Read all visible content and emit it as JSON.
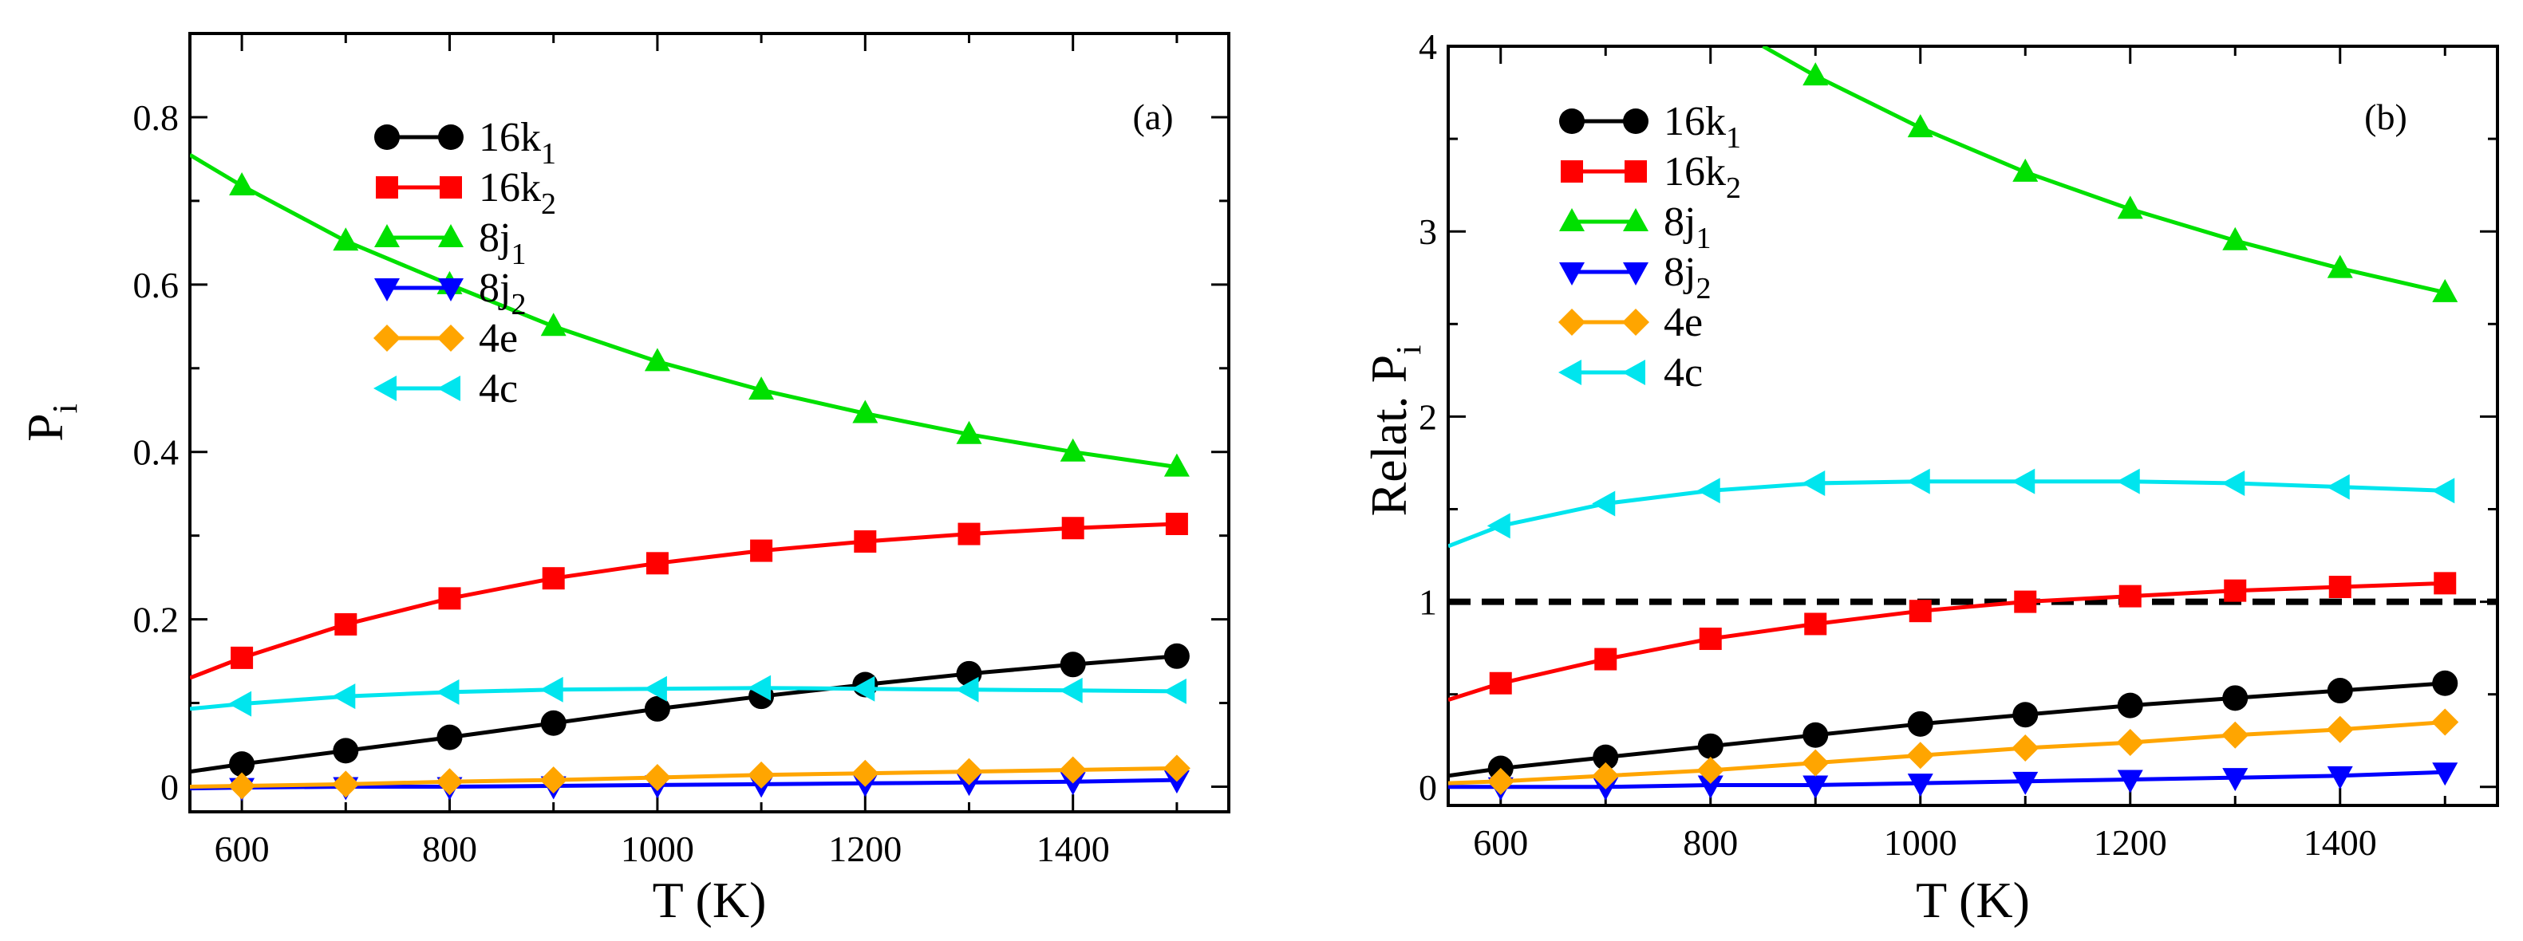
{
  "chart_data": [
    {
      "type": "line",
      "panel_label": "(a)",
      "xlabel": "T (K)",
      "ylabel": {
        "main": "P",
        "sub": "i"
      },
      "xlim": [
        550,
        1550
      ],
      "ylim": [
        -0.03,
        0.9
      ],
      "xticks": [
        600,
        800,
        1000,
        1200,
        1400
      ],
      "yticks": [
        0,
        0.2,
        0.4,
        0.6,
        0.8
      ],
      "xtick_labels": [
        "600",
        "800",
        "1000",
        "1200",
        "1400"
      ],
      "ytick_labels": [
        "0",
        "0.2",
        "0.4",
        "0.6",
        "0.8"
      ],
      "legend_position": "top-left",
      "series": [
        {
          "name": "16k",
          "sub": "1",
          "color": "#000000",
          "marker": "circle",
          "x": [
            550,
            600,
            700,
            800,
            900,
            1000,
            1100,
            1200,
            1300,
            1400,
            1500
          ],
          "y": [
            0.018,
            0.027,
            0.043,
            0.059,
            0.076,
            0.093,
            0.108,
            0.122,
            0.135,
            0.146,
            0.156
          ]
        },
        {
          "name": "16k",
          "sub": "2",
          "color": "#ff0000",
          "marker": "square",
          "x": [
            550,
            600,
            700,
            800,
            900,
            1000,
            1100,
            1200,
            1300,
            1400,
            1500
          ],
          "y": [
            0.13,
            0.154,
            0.194,
            0.225,
            0.249,
            0.267,
            0.282,
            0.293,
            0.302,
            0.309,
            0.314
          ]
        },
        {
          "name": "8j",
          "sub": "1",
          "color": "#00e000",
          "marker": "triangle-up",
          "x": [
            550,
            600,
            700,
            800,
            900,
            1000,
            1100,
            1200,
            1300,
            1400,
            1500
          ],
          "y": [
            0.755,
            0.718,
            0.652,
            0.6,
            0.55,
            0.508,
            0.474,
            0.446,
            0.421,
            0.4,
            0.382
          ]
        },
        {
          "name": "8j",
          "sub": "2",
          "color": "#0000ff",
          "marker": "triangle-down",
          "x": [
            550,
            600,
            700,
            800,
            900,
            1000,
            1100,
            1200,
            1300,
            1400,
            1500
          ],
          "y": [
            -0.002,
            -0.001,
            0.0,
            0.0,
            0.001,
            0.002,
            0.003,
            0.004,
            0.005,
            0.006,
            0.008
          ]
        },
        {
          "name": "4e",
          "sub": "",
          "color": "#ffa500",
          "marker": "diamond",
          "x": [
            550,
            600,
            700,
            800,
            900,
            1000,
            1100,
            1200,
            1300,
            1400,
            1500
          ],
          "y": [
            0.0,
            0.001,
            0.003,
            0.006,
            0.008,
            0.011,
            0.014,
            0.016,
            0.018,
            0.02,
            0.022
          ]
        },
        {
          "name": "4c",
          "sub": "",
          "color": "#00e5ee",
          "marker": "triangle-left",
          "x": [
            550,
            600,
            700,
            800,
            900,
            1000,
            1100,
            1200,
            1300,
            1400,
            1500
          ],
          "y": [
            0.093,
            0.099,
            0.108,
            0.113,
            0.116,
            0.117,
            0.118,
            0.117,
            0.116,
            0.115,
            0.114
          ]
        }
      ]
    },
    {
      "type": "line",
      "panel_label": "(b)",
      "xlabel": "T (K)",
      "ylabel": {
        "main": "Relat. P",
        "sub": "i"
      },
      "xlim": [
        550,
        1550
      ],
      "ylim": [
        -0.1,
        4.0
      ],
      "xticks": [
        600,
        800,
        1000,
        1200,
        1400
      ],
      "yticks": [
        0,
        1,
        2,
        3,
        4
      ],
      "xtick_labels": [
        "600",
        "800",
        "1000",
        "1200",
        "1400"
      ],
      "ytick_labels": [
        "0",
        "1",
        "2",
        "3",
        "4"
      ],
      "reference_line": {
        "y": 1,
        "style": "dashed",
        "color": "#000000"
      },
      "legend_position": "top-left",
      "series": [
        {
          "name": "16k",
          "sub": "1",
          "color": "#000000",
          "marker": "circle",
          "x": [
            550,
            600,
            700,
            800,
            900,
            1000,
            1100,
            1200,
            1300,
            1400,
            1500
          ],
          "y": [
            0.06,
            0.1,
            0.16,
            0.22,
            0.28,
            0.34,
            0.39,
            0.44,
            0.48,
            0.52,
            0.56
          ]
        },
        {
          "name": "16k",
          "sub": "2",
          "color": "#ff0000",
          "marker": "square",
          "x": [
            550,
            600,
            700,
            800,
            900,
            1000,
            1100,
            1200,
            1300,
            1400,
            1500
          ],
          "y": [
            0.47,
            0.56,
            0.69,
            0.8,
            0.88,
            0.95,
            1.0,
            1.03,
            1.06,
            1.08,
            1.1
          ]
        },
        {
          "name": "8j",
          "sub": "1",
          "color": "#00e000",
          "marker": "triangle-up",
          "x": [
            850,
            900,
            1000,
            1100,
            1200,
            1300,
            1400,
            1500
          ],
          "y": [
            4.0,
            3.84,
            3.56,
            3.32,
            3.12,
            2.95,
            2.8,
            2.67
          ]
        },
        {
          "name": "8j",
          "sub": "2",
          "color": "#0000ff",
          "marker": "triangle-down",
          "x": [
            550,
            600,
            700,
            800,
            900,
            1000,
            1100,
            1200,
            1300,
            1400,
            1500
          ],
          "y": [
            0.0,
            0.0,
            0.0,
            0.01,
            0.01,
            0.02,
            0.03,
            0.04,
            0.05,
            0.06,
            0.08
          ]
        },
        {
          "name": "4e",
          "sub": "",
          "color": "#ffa500",
          "marker": "diamond",
          "x": [
            550,
            600,
            700,
            800,
            900,
            1000,
            1100,
            1200,
            1300,
            1400,
            1500
          ],
          "y": [
            0.02,
            0.03,
            0.06,
            0.09,
            0.13,
            0.17,
            0.21,
            0.24,
            0.28,
            0.31,
            0.35
          ]
        },
        {
          "name": "4c",
          "sub": "",
          "color": "#00e5ee",
          "marker": "triangle-left",
          "x": [
            550,
            600,
            700,
            800,
            900,
            1000,
            1100,
            1200,
            1300,
            1400,
            1500
          ],
          "y": [
            1.3,
            1.41,
            1.53,
            1.6,
            1.64,
            1.65,
            1.65,
            1.65,
            1.64,
            1.62,
            1.6
          ]
        }
      ]
    }
  ]
}
